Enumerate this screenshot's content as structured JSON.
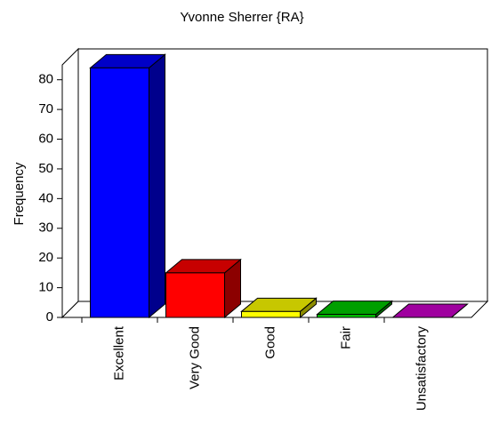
{
  "chart_data": {
    "type": "bar3d",
    "title": "Yvonne Sherrer {RA}",
    "y_label": "Frequency",
    "categories": [
      "Excellent",
      "Very Good",
      "Good",
      "Fair",
      "Unsatisfactory"
    ],
    "values": [
      84,
      15,
      2,
      1,
      0
    ],
    "colors": [
      "#0000ff",
      "#ff0000",
      "#ffff00",
      "#00cc00",
      "#cc00cc"
    ],
    "ylim": [
      0,
      85
    ],
    "yticks": [
      0,
      10,
      20,
      30,
      40,
      50,
      60,
      70,
      80
    ]
  }
}
